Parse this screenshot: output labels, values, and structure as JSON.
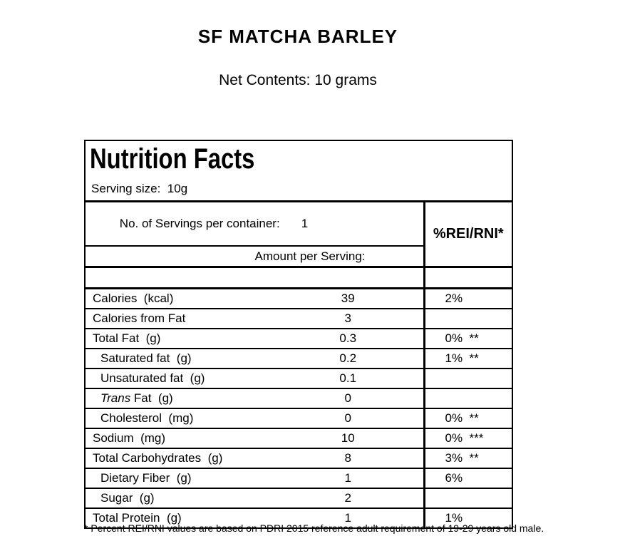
{
  "page": {
    "title": "SF MATCHA BARLEY",
    "net_contents": "Net Contents: 10 grams",
    "footnote": "* Percent REI/RNI values are based on PDRI 2015 reference adult requirement of 19-29 years old male."
  },
  "nutrition_label": {
    "heading": "Nutrition Facts",
    "serving_size": "Serving size:  10g",
    "servings_per_container_label": "No. of Servings per container:",
    "servings_per_container_value": "1",
    "amount_per_serving_header": "Amount per Serving:",
    "pct_column_header": "%REI/RNI*",
    "rows": [
      {
        "name": "Calories  (kcal)",
        "amount": "39",
        "pct": "2%",
        "indent": false
      },
      {
        "name": "Calories from Fat",
        "amount": "3",
        "pct": "",
        "indent": false
      },
      {
        "name": "Total Fat  (g)",
        "amount": "0.3",
        "pct": "0%  **",
        "indent": false
      },
      {
        "name": "Saturated fat  (g)",
        "amount": "0.2",
        "pct": "1%  **",
        "indent": true
      },
      {
        "name": "Unsaturated fat  (g)",
        "amount": "0.1",
        "pct": "",
        "indent": true
      },
      {
        "name": "Trans Fat  (g)",
        "italic_prefix": "Trans",
        "name_rest": " Fat  (g)",
        "amount": "0",
        "pct": "",
        "indent": true
      },
      {
        "name": "Cholesterol  (mg)",
        "amount": "0",
        "pct": "0%  **",
        "indent": true
      },
      {
        "name": "Sodium  (mg)",
        "amount": "10",
        "pct": "0%  ***",
        "indent": false
      },
      {
        "name": "Total Carbohydrates  (g)",
        "amount": "8",
        "pct": "3%  **",
        "indent": false
      },
      {
        "name": "Dietary Fiber  (g)",
        "amount": "1",
        "pct": "6%",
        "indent": true
      },
      {
        "name": "Sugar  (g)",
        "amount": "2",
        "pct": "",
        "indent": true
      },
      {
        "name": "Total Protein  (g)",
        "amount": "1",
        "pct": "1%",
        "indent": false
      }
    ]
  },
  "colors": {
    "border": "#000000",
    "background": "#ffffff",
    "text": "#000000"
  }
}
